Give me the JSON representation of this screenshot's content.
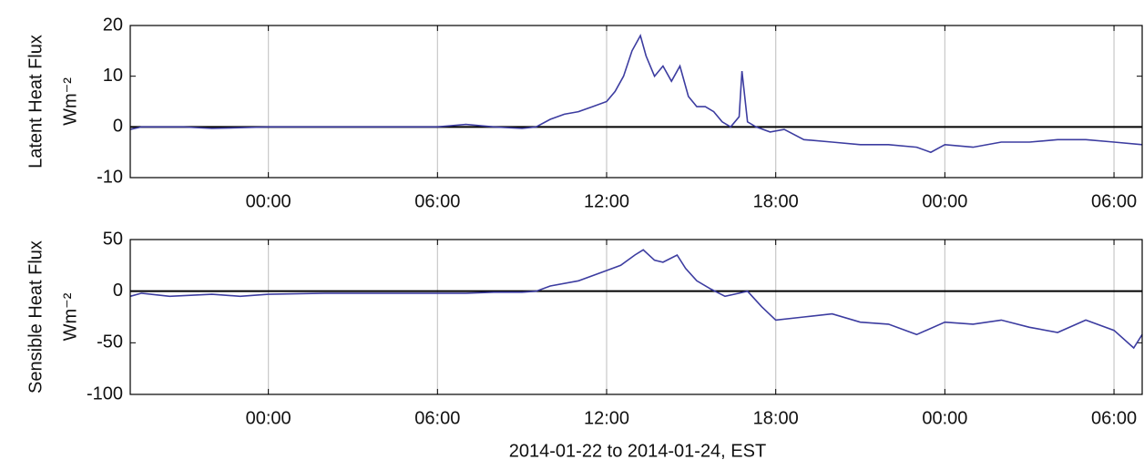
{
  "chart_data": [
    {
      "type": "line",
      "ylabel": "Latent Heat Flux",
      "yunit": "Wm⁻²",
      "x": [
        -4.9,
        -4.5,
        -3,
        -2,
        0,
        2,
        4,
        6,
        7,
        8,
        9,
        9.5,
        10,
        10.5,
        11,
        11.5,
        12,
        12.3,
        12.6,
        12.9,
        13.2,
        13.4,
        13.7,
        14,
        14.3,
        14.6,
        14.9,
        15.2,
        15.5,
        15.8,
        16.1,
        16.4,
        16.7,
        16.8,
        17,
        17.3,
        17.8,
        18.3,
        19,
        20,
        21,
        22,
        23,
        23.5,
        24,
        25,
        26,
        27,
        28,
        29,
        30,
        31
      ],
      "series": [
        {
          "name": "Latent Heat Flux",
          "color": "#3c3ca0",
          "values": [
            -0.5,
            0,
            0,
            -0.3,
            0,
            0,
            0,
            0,
            0.5,
            0,
            -0.3,
            0,
            1.5,
            2.5,
            3,
            4,
            5,
            7,
            10,
            15,
            18,
            14,
            10,
            12,
            9,
            12,
            6,
            4,
            4,
            3,
            1,
            0,
            2,
            11,
            1,
            0,
            -1,
            -0.5,
            -2.5,
            -3,
            -3.5,
            -3.5,
            -4,
            -5,
            -3.5,
            -4,
            -3,
            -3,
            -2.5,
            -2.5,
            -3,
            -3.5
          ]
        }
      ],
      "xlim": [
        -4.9,
        31
      ],
      "xticks": [
        {
          "value": 0,
          "label": "00:00"
        },
        {
          "value": 6,
          "label": "06:00"
        },
        {
          "value": 12,
          "label": "12:00"
        },
        {
          "value": 18,
          "label": "18:00"
        },
        {
          "value": 24,
          "label": "00:00"
        },
        {
          "value": 30,
          "label": "06:00"
        }
      ],
      "ylim": [
        -10,
        20
      ],
      "yticks": [
        -10,
        0,
        10,
        20
      ],
      "grid": true,
      "zero_line": true
    },
    {
      "type": "line",
      "ylabel": "Sensible Heat Flux",
      "yunit": "Wm⁻²",
      "xlabel": "2014-01-22 to 2014-01-24, EST",
      "x": [
        -4.9,
        -4.5,
        -3.5,
        -2,
        -1,
        0,
        2,
        4,
        6,
        7,
        8,
        9,
        9.5,
        10,
        11,
        12,
        12.5,
        13,
        13.3,
        13.7,
        14,
        14.5,
        14.8,
        15.2,
        15.7,
        16.2,
        16.7,
        17,
        17.5,
        18,
        19,
        20,
        21,
        22,
        23,
        24,
        25,
        26,
        27,
        28,
        29,
        30,
        30.7,
        31
      ],
      "series": [
        {
          "name": "Sensible Heat Flux",
          "color": "#3c3ca0",
          "values": [
            -5,
            -2,
            -5,
            -3,
            -5,
            -3,
            -2,
            -2,
            -2,
            -2,
            -1,
            -1,
            0,
            5,
            10,
            20,
            25,
            35,
            40,
            30,
            28,
            35,
            22,
            10,
            2,
            -5,
            -2,
            0,
            -15,
            -28,
            -25,
            -22,
            -30,
            -32,
            -42,
            -30,
            -32,
            -28,
            -35,
            -40,
            -28,
            -38,
            -55,
            -42
          ]
        }
      ],
      "xlim": [
        -4.9,
        31
      ],
      "xticks": [
        {
          "value": 0,
          "label": "00:00"
        },
        {
          "value": 6,
          "label": "06:00"
        },
        {
          "value": 12,
          "label": "12:00"
        },
        {
          "value": 18,
          "label": "18:00"
        },
        {
          "value": 24,
          "label": "00:00"
        },
        {
          "value": 30,
          "label": "06:00"
        }
      ],
      "ylim": [
        -100,
        50
      ],
      "yticks": [
        -100,
        -50,
        0,
        50
      ],
      "grid": true,
      "zero_line": true
    }
  ]
}
